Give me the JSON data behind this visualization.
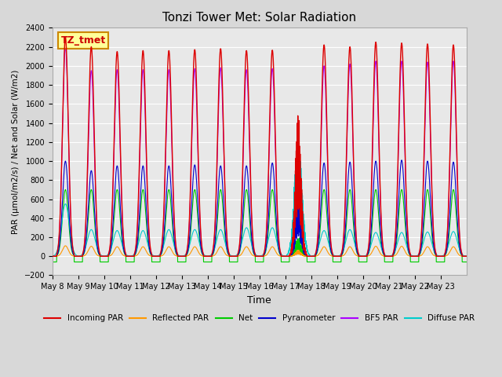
{
  "title": "Tonzi Tower Met: Solar Radiation",
  "ylabel": "PAR (μmol/m2/s) / Net and Solar (W/m2)",
  "xlabel": "Time",
  "ylim": [
    -200,
    2400
  ],
  "bg_color": "#d8d8d8",
  "plot_bg_color": "#e8e8e8",
  "grid_color": "#ffffff",
  "label_box_text": "TZ_tmet",
  "label_box_color": "#ffff99",
  "label_box_edge": "#cc8800",
  "x_tick_labels": [
    "May 8",
    "May 9",
    "May 10",
    "May 11",
    "May 12",
    "May 13",
    "May 14",
    "May 15",
    "May 16",
    "May 17",
    "May 18",
    "May 19",
    "May 20",
    "May 21",
    "May 22",
    "May 23"
  ],
  "series": [
    {
      "name": "Incoming PAR",
      "color": "#dd0000"
    },
    {
      "name": "Reflected PAR",
      "color": "#ff9900"
    },
    {
      "name": "Net",
      "color": "#00cc00"
    },
    {
      "name": "Pyranometer",
      "color": "#0000cc"
    },
    {
      "name": "BF5 PAR",
      "color": "#aa00ff"
    },
    {
      "name": "Diffuse PAR",
      "color": "#00cccc"
    }
  ],
  "n_days": 16,
  "incoming_par_peaks": [
    2300,
    2200,
    2150,
    2160,
    2160,
    2170,
    2180,
    2160,
    2165,
    1520,
    2220,
    2200,
    2250,
    2240,
    2230,
    2220
  ],
  "reflected_par_peaks": [
    110,
    105,
    100,
    100,
    100,
    100,
    100,
    100,
    100,
    65,
    100,
    100,
    105,
    105,
    100,
    100
  ],
  "net_peaks": [
    700,
    700,
    700,
    700,
    700,
    700,
    700,
    700,
    700,
    200,
    700,
    700,
    700,
    700,
    700,
    700
  ],
  "pyranometer_peaks": [
    1000,
    900,
    950,
    950,
    950,
    960,
    950,
    950,
    980,
    650,
    980,
    990,
    1000,
    1010,
    1000,
    990
  ],
  "bf5_peaks": [
    2200,
    1950,
    1960,
    1960,
    1960,
    1970,
    1980,
    1960,
    1970,
    1300,
    2000,
    2020,
    2050,
    2050,
    2040,
    2050
  ],
  "diffuse_peaks": [
    550,
    280,
    270,
    270,
    280,
    280,
    280,
    300,
    300,
    1130,
    270,
    280,
    250,
    250,
    255,
    260
  ],
  "cloudy_day_idx": 9
}
